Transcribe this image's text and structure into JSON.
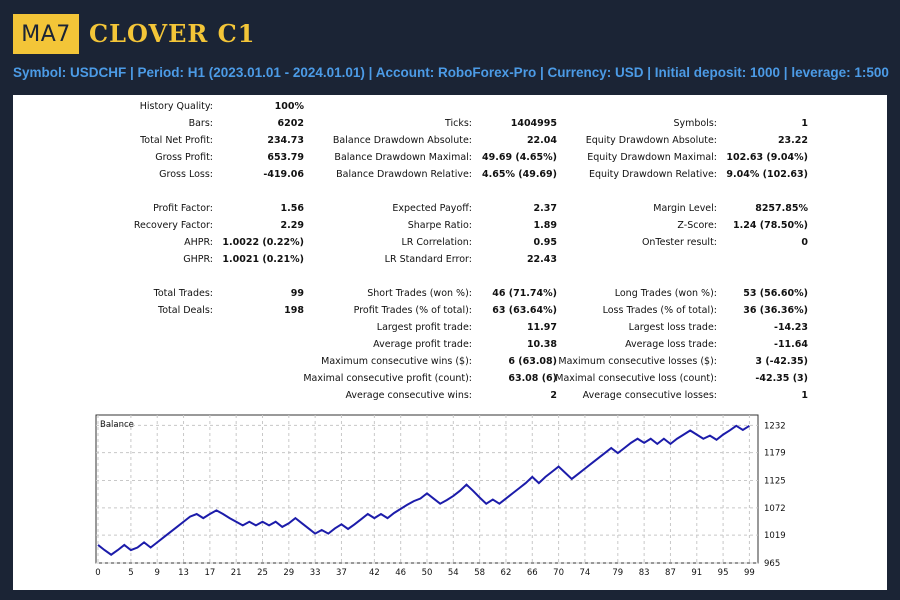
{
  "header": {
    "logo": "MA7",
    "title": "CLOVER C1",
    "info": "Symbol: USDCHF  |  Period: H1 (2023.01.01 - 2024.01.01)  |  Account: RoboForex-Pro  |  Currency: USD  | Initial deposit: 1000  |  leverage: 1:500"
  },
  "stats": {
    "history_quality": {
      "label": "History Quality:",
      "value": "100%"
    },
    "bars": {
      "label": "Bars:",
      "value": "6202"
    },
    "total_net_profit": {
      "label": "Total Net Profit:",
      "value": "234.73"
    },
    "gross_profit": {
      "label": "Gross Profit:",
      "value": "653.79"
    },
    "gross_loss": {
      "label": "Gross Loss:",
      "value": "-419.06"
    },
    "ticks": {
      "label": "Ticks:",
      "value": "1404995"
    },
    "balance_dd_abs": {
      "label": "Balance Drawdown Absolute:",
      "value": "22.04"
    },
    "balance_dd_max": {
      "label": "Balance Drawdown Maximal:",
      "value": "49.69 (4.65%)"
    },
    "balance_dd_rel": {
      "label": "Balance Drawdown Relative:",
      "value": "4.65% (49.69)"
    },
    "symbols": {
      "label": "Symbols:",
      "value": "1"
    },
    "equity_dd_abs": {
      "label": "Equity Drawdown Absolute:",
      "value": "23.22"
    },
    "equity_dd_max": {
      "label": "Equity Drawdown Maximal:",
      "value": "102.63 (9.04%)"
    },
    "equity_dd_rel": {
      "label": "Equity Drawdown Relative:",
      "value": "9.04% (102.63)"
    },
    "profit_factor": {
      "label": "Profit Factor:",
      "value": "1.56"
    },
    "recovery_factor": {
      "label": "Recovery Factor:",
      "value": "2.29"
    },
    "ahpr": {
      "label": "AHPR:",
      "value": "1.0022 (0.22%)"
    },
    "ghpr": {
      "label": "GHPR:",
      "value": "1.0021 (0.21%)"
    },
    "expected_payoff": {
      "label": "Expected Payoff:",
      "value": "2.37"
    },
    "sharpe_ratio": {
      "label": "Sharpe Ratio:",
      "value": "1.89"
    },
    "lr_correlation": {
      "label": "LR Correlation:",
      "value": "0.95"
    },
    "lr_std_error": {
      "label": "LR Standard Error:",
      "value": "22.43"
    },
    "margin_level": {
      "label": "Margin Level:",
      "value": "8257.85%"
    },
    "z_score": {
      "label": "Z-Score:",
      "value": "1.24 (78.50%)"
    },
    "ontester": {
      "label": "OnTester result:",
      "value": "0"
    },
    "total_trades": {
      "label": "Total Trades:",
      "value": "99"
    },
    "total_deals": {
      "label": "Total Deals:",
      "value": "198"
    },
    "short_trades": {
      "label": "Short Trades (won %):",
      "value": "46 (71.74%)"
    },
    "profit_trades": {
      "label": "Profit Trades (% of total):",
      "value": "63 (63.64%)"
    },
    "largest_profit": {
      "label": "Largest profit trade:",
      "value": "11.97"
    },
    "avg_profit": {
      "label": "Average profit trade:",
      "value": "10.38"
    },
    "max_consec_wins": {
      "label": "Maximum consecutive wins ($):",
      "value": "6 (63.08)"
    },
    "maximal_consec_profit": {
      "label": "Maximal consecutive profit (count):",
      "value": "63.08 (6)"
    },
    "avg_consec_wins": {
      "label": "Average consecutive wins:",
      "value": "2"
    },
    "long_trades": {
      "label": "Long Trades (won %):",
      "value": "53 (56.60%)"
    },
    "loss_trades": {
      "label": "Loss Trades (% of total):",
      "value": "36 (36.36%)"
    },
    "largest_loss": {
      "label": "Largest loss trade:",
      "value": "-14.23"
    },
    "avg_loss": {
      "label": "Average loss trade:",
      "value": "-11.64"
    },
    "max_consec_losses": {
      "label": "Maximum consecutive losses ($):",
      "value": "3 (-42.35)"
    },
    "maximal_consec_loss": {
      "label": "Maximal consecutive loss (count):",
      "value": "-42.35 (3)"
    },
    "avg_consec_losses": {
      "label": "Average consecutive losses:",
      "value": "1"
    }
  },
  "colors": {
    "background": "#1b2435",
    "accent_yellow": "#f3c538",
    "info_blue": "#4c9be6",
    "balance_line": "#1c1caa"
  },
  "chart_data": {
    "type": "line",
    "title": "Balance",
    "xlabel": "",
    "ylabel": "",
    "x_ticks": [
      0,
      5,
      9,
      13,
      17,
      21,
      25,
      29,
      33,
      37,
      42,
      46,
      50,
      54,
      58,
      62,
      66,
      70,
      74,
      79,
      83,
      87,
      91,
      95,
      99
    ],
    "y_ticks": [
      965,
      1019,
      1072,
      1125,
      1179,
      1232
    ],
    "xlim": [
      0,
      100
    ],
    "ylim": [
      965,
      1252
    ],
    "series": [
      {
        "name": "Balance",
        "values": [
          1000,
          990,
          981,
          990,
          1000,
          990,
          995,
          1005,
          995,
          1005,
          1015,
          1025,
          1035,
          1045,
          1055,
          1060,
          1052,
          1060,
          1067,
          1060,
          1052,
          1045,
          1038,
          1045,
          1038,
          1045,
          1038,
          1045,
          1035,
          1042,
          1052,
          1042,
          1032,
          1022,
          1029,
          1022,
          1032,
          1040,
          1031,
          1040,
          1050,
          1060,
          1052,
          1060,
          1052,
          1062,
          1070,
          1078,
          1085,
          1090,
          1100,
          1090,
          1080,
          1087,
          1095,
          1105,
          1117,
          1105,
          1092,
          1080,
          1088,
          1080,
          1090,
          1100,
          1110,
          1120,
          1132,
          1120,
          1132,
          1142,
          1152,
          1140,
          1128,
          1138,
          1148,
          1158,
          1168,
          1178,
          1188,
          1178,
          1188,
          1198,
          1206,
          1198,
          1206,
          1196,
          1206,
          1196,
          1206,
          1214,
          1222,
          1214,
          1206,
          1212,
          1204,
          1214,
          1222,
          1231,
          1223,
          1231
        ]
      }
    ]
  }
}
